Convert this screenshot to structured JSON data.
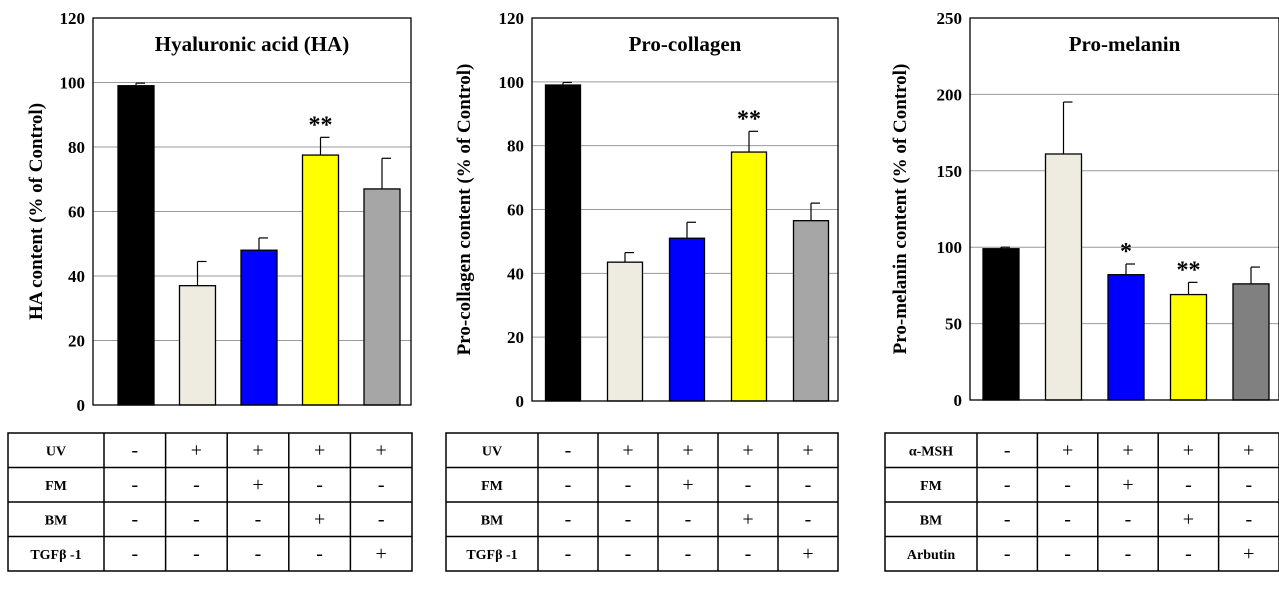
{
  "chart_data": [
    {
      "type": "bar",
      "title": "Hyaluronic acid (HA)",
      "ylabel": "HA content (% of Control)",
      "ylim": [
        0,
        120
      ],
      "yticks": [
        0,
        20,
        40,
        60,
        80,
        100,
        120
      ],
      "grid": true,
      "values": [
        99,
        37,
        48,
        77.5,
        67
      ],
      "errors": [
        0.8,
        7.5,
        3.8,
        5.5,
        9.5
      ],
      "significance": [
        "",
        "",
        "",
        "**",
        ""
      ],
      "bar_colors": [
        "#000000",
        "#eeebe0",
        "#0000ff",
        "#ffff00",
        "#a6a6a6"
      ],
      "table": [
        {
          "label": "UV",
          "cells": [
            "-",
            "+",
            "+",
            "+",
            "+"
          ]
        },
        {
          "label": "FM",
          "cells": [
            "-",
            "-",
            "+",
            "-",
            "-"
          ]
        },
        {
          "label": "BM",
          "cells": [
            "-",
            "-",
            "-",
            "+",
            "-"
          ]
        },
        {
          "label": "TGFβ -1",
          "cells": [
            "-",
            "-",
            "-",
            "-",
            "+"
          ]
        }
      ]
    },
    {
      "type": "bar",
      "title": "Pro-collagen",
      "ylabel": "Pro-collagen content (% of Control)",
      "ylim": [
        0,
        120
      ],
      "yticks": [
        0,
        20,
        40,
        60,
        80,
        100,
        120
      ],
      "grid": true,
      "values": [
        99,
        43.5,
        51,
        78,
        56.5
      ],
      "errors": [
        0.8,
        3,
        5,
        6.5,
        5.5
      ],
      "significance": [
        "",
        "",
        "",
        "**",
        ""
      ],
      "bar_colors": [
        "#000000",
        "#eeebe0",
        "#0000ff",
        "#ffff00",
        "#a6a6a6"
      ],
      "table": [
        {
          "label": "UV",
          "cells": [
            "-",
            "+",
            "+",
            "+",
            "+"
          ]
        },
        {
          "label": "FM",
          "cells": [
            "-",
            "-",
            "+",
            "-",
            "-"
          ]
        },
        {
          "label": "BM",
          "cells": [
            "-",
            "-",
            "-",
            "+",
            "-"
          ]
        },
        {
          "label": "TGFβ -1",
          "cells": [
            "-",
            "-",
            "-",
            "-",
            "+"
          ]
        }
      ]
    },
    {
      "type": "bar",
      "title": "Pro-melanin",
      "ylabel": "Pro-melanin content (% of Control)",
      "ylim": [
        0,
        250
      ],
      "yticks": [
        0,
        50,
        100,
        150,
        200,
        250
      ],
      "grid": true,
      "values": [
        99,
        161,
        82,
        69,
        76
      ],
      "errors": [
        1,
        34,
        7,
        8,
        11
      ],
      "significance": [
        "",
        "",
        "*",
        "**",
        ""
      ],
      "bar_colors": [
        "#000000",
        "#eeebe0",
        "#0000ff",
        "#ffff00",
        "#808080"
      ],
      "table": [
        {
          "label": "α-MSH",
          "cells": [
            "-",
            "+",
            "+",
            "+",
            "+"
          ]
        },
        {
          "label": "FM",
          "cells": [
            "-",
            "-",
            "+",
            "-",
            "-"
          ]
        },
        {
          "label": "BM",
          "cells": [
            "-",
            "-",
            "-",
            "+",
            "-"
          ]
        },
        {
          "label": "Arbutin",
          "cells": [
            "-",
            "-",
            "-",
            "-",
            "+"
          ]
        }
      ]
    }
  ]
}
